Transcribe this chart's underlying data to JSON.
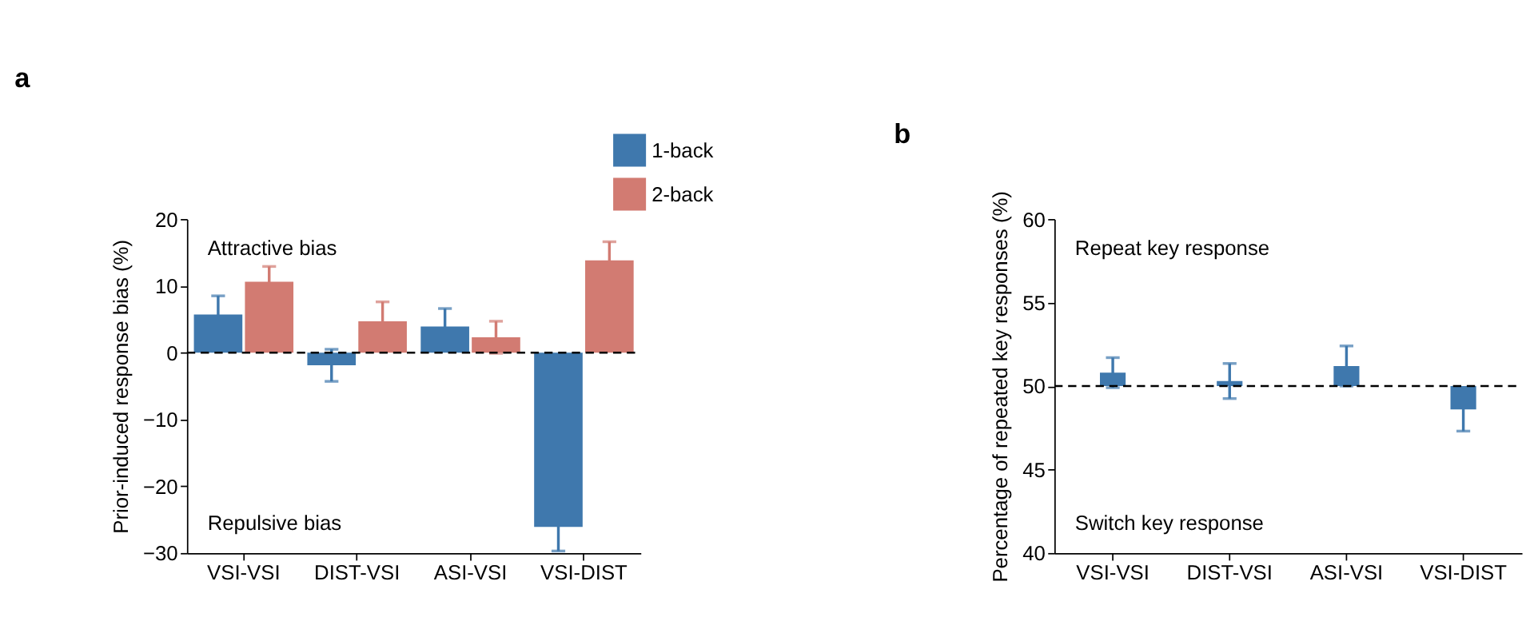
{
  "chart_data": [
    {
      "type": "bar",
      "title": "a",
      "ylabel": "Prior-induced response bias (%)",
      "categories": [
        "VSI-VSI",
        "DIST-VSI",
        "ASI-VSI",
        "VSI-DIST"
      ],
      "series": [
        {
          "name": "1-back",
          "color": "#3f78ad",
          "values": [
            5.7,
            -1.9,
            3.9,
            -26.1
          ],
          "errors": [
            2.8,
            2.4,
            2.7,
            3.6
          ]
        },
        {
          "name": "2-back",
          "color": "#d27b72",
          "values": [
            10.6,
            4.7,
            2.3,
            13.8
          ],
          "errors": [
            2.3,
            2.9,
            2.4,
            2.8
          ]
        }
      ],
      "ylim": [
        -30,
        20
      ],
      "yticks": [
        -30,
        -20,
        -10,
        0,
        10,
        20
      ],
      "legend": "top right",
      "grid": false,
      "ref_lines": [
        {
          "axis": "y",
          "value": 0,
          "line_style": "dashed",
          "color": "#000000"
        }
      ],
      "annotations": [
        "Attractive bias",
        "Repulsive bias"
      ]
    },
    {
      "type": "bar",
      "title": "b",
      "ylabel": "Percentage of repeated key responses (%)",
      "categories": [
        "VSI-VSI",
        "DIST-VSI",
        "ASI-VSI",
        "VSI-DIST"
      ],
      "series": [
        {
          "color": "#3f78ad",
          "values": [
            0.8,
            0.3,
            1.2,
            -1.4
          ],
          "base": [
            50,
            50,
            50,
            50
          ],
          "errors": [
            0.9,
            1.05,
            1.2,
            1.3
          ]
        }
      ],
      "ylim": [
        40,
        60
      ],
      "yticks": [
        40,
        45,
        50,
        55,
        60
      ],
      "legend": false,
      "grid": false,
      "ref_lines": [
        {
          "axis": "y",
          "value": 50,
          "line_style": "dashed",
          "color": "#000000"
        }
      ],
      "annotations": [
        "Repeat key response",
        "Switch key response"
      ]
    }
  ]
}
